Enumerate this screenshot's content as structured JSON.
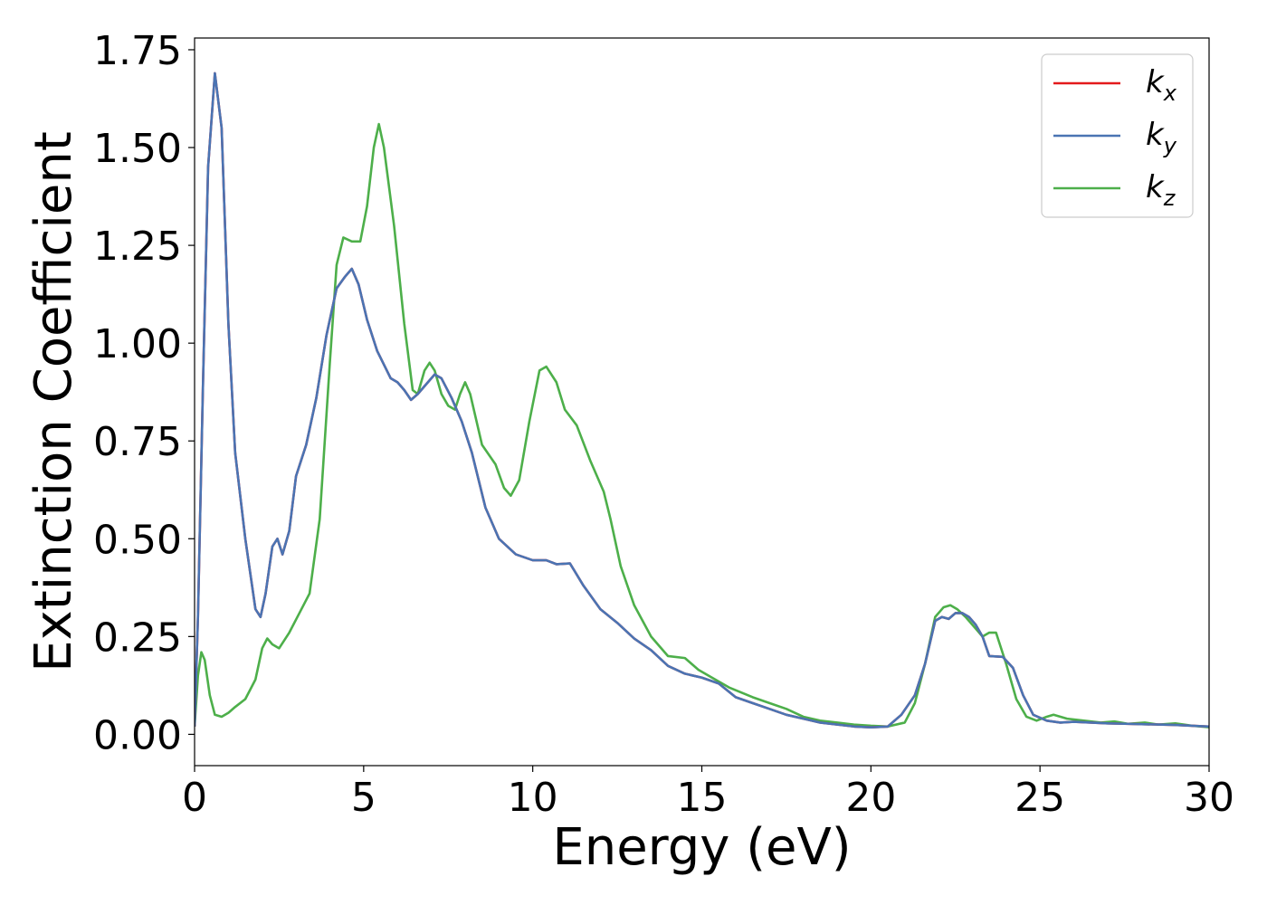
{
  "chart_data": {
    "type": "line",
    "title": "",
    "xlabel": "Energy (eV)",
    "ylabel": "Extinction Coefficient",
    "xlim": [
      0,
      30
    ],
    "ylim": [
      -0.08,
      1.78
    ],
    "xticks": [
      0,
      5,
      10,
      15,
      20,
      25,
      30
    ],
    "xtick_labels": [
      "0",
      "5",
      "10",
      "15",
      "20",
      "25",
      "30"
    ],
    "yticks": [
      0,
      0.25,
      0.5,
      0.75,
      1.0,
      1.25,
      1.5,
      1.75
    ],
    "ytick_labels": [
      "0.00",
      "0.25",
      "0.50",
      "0.75",
      "1.00",
      "1.25",
      "1.50",
      "1.75"
    ],
    "grid": false,
    "legend_position": "top-right",
    "series": [
      {
        "name": "k_x",
        "legend_main": "k",
        "legend_sub": "x",
        "color": "#e41a1c",
        "points": [
          [
            0,
            0.02
          ],
          [
            0.1,
            0.3
          ],
          [
            0.25,
            0.9
          ],
          [
            0.4,
            1.45
          ],
          [
            0.6,
            1.69
          ],
          [
            0.8,
            1.55
          ],
          [
            1.0,
            1.05
          ],
          [
            1.2,
            0.72
          ],
          [
            1.5,
            0.5
          ],
          [
            1.8,
            0.32
          ],
          [
            1.95,
            0.3
          ],
          [
            2.1,
            0.36
          ],
          [
            2.3,
            0.48
          ],
          [
            2.45,
            0.5
          ],
          [
            2.6,
            0.46
          ],
          [
            2.8,
            0.52
          ],
          [
            3.0,
            0.66
          ],
          [
            3.3,
            0.74
          ],
          [
            3.6,
            0.86
          ],
          [
            3.9,
            1.02
          ],
          [
            4.2,
            1.14
          ],
          [
            4.45,
            1.17
          ],
          [
            4.65,
            1.19
          ],
          [
            4.85,
            1.15
          ],
          [
            5.1,
            1.06
          ],
          [
            5.4,
            0.98
          ],
          [
            5.8,
            0.91
          ],
          [
            6.0,
            0.9
          ],
          [
            6.2,
            0.88
          ],
          [
            6.4,
            0.855
          ],
          [
            6.6,
            0.87
          ],
          [
            6.9,
            0.9
          ],
          [
            7.1,
            0.92
          ],
          [
            7.3,
            0.91
          ],
          [
            7.6,
            0.86
          ],
          [
            7.9,
            0.8
          ],
          [
            8.2,
            0.72
          ],
          [
            8.6,
            0.58
          ],
          [
            9.0,
            0.5
          ],
          [
            9.5,
            0.46
          ],
          [
            10.0,
            0.445
          ],
          [
            10.4,
            0.445
          ],
          [
            10.7,
            0.435
          ],
          [
            11.1,
            0.437
          ],
          [
            11.5,
            0.38
          ],
          [
            12.0,
            0.32
          ],
          [
            12.5,
            0.285
          ],
          [
            13.0,
            0.245
          ],
          [
            13.5,
            0.215
          ],
          [
            14.0,
            0.175
          ],
          [
            14.5,
            0.155
          ],
          [
            15.0,
            0.145
          ],
          [
            15.5,
            0.13
          ],
          [
            16.0,
            0.095
          ],
          [
            16.5,
            0.08
          ],
          [
            17.0,
            0.065
          ],
          [
            17.5,
            0.05
          ],
          [
            18.0,
            0.04
          ],
          [
            18.5,
            0.03
          ],
          [
            19.0,
            0.025
          ],
          [
            19.5,
            0.02
          ],
          [
            20.0,
            0.018
          ],
          [
            20.5,
            0.02
          ],
          [
            20.9,
            0.05
          ],
          [
            21.3,
            0.1
          ],
          [
            21.6,
            0.18
          ],
          [
            21.9,
            0.29
          ],
          [
            22.1,
            0.3
          ],
          [
            22.3,
            0.295
          ],
          [
            22.5,
            0.31
          ],
          [
            22.7,
            0.31
          ],
          [
            22.9,
            0.3
          ],
          [
            23.1,
            0.28
          ],
          [
            23.3,
            0.25
          ],
          [
            23.5,
            0.2
          ],
          [
            23.9,
            0.198
          ],
          [
            24.2,
            0.17
          ],
          [
            24.5,
            0.1
          ],
          [
            24.8,
            0.05
          ],
          [
            25.2,
            0.035
          ],
          [
            25.6,
            0.03
          ],
          [
            26.0,
            0.032
          ],
          [
            26.5,
            0.03
          ],
          [
            27.0,
            0.028
          ],
          [
            27.5,
            0.027
          ],
          [
            28.0,
            0.026
          ],
          [
            28.5,
            0.025
          ],
          [
            29.0,
            0.024
          ],
          [
            29.5,
            0.022
          ],
          [
            30.0,
            0.02
          ]
        ]
      },
      {
        "name": "k_y",
        "legend_main": "k",
        "legend_sub": "y",
        "color": "#4a74b3",
        "points": [
          [
            0,
            0.02
          ],
          [
            0.1,
            0.3
          ],
          [
            0.25,
            0.9
          ],
          [
            0.4,
            1.45
          ],
          [
            0.6,
            1.69
          ],
          [
            0.8,
            1.55
          ],
          [
            1.0,
            1.05
          ],
          [
            1.2,
            0.72
          ],
          [
            1.5,
            0.5
          ],
          [
            1.8,
            0.32
          ],
          [
            1.95,
            0.3
          ],
          [
            2.1,
            0.36
          ],
          [
            2.3,
            0.48
          ],
          [
            2.45,
            0.5
          ],
          [
            2.6,
            0.46
          ],
          [
            2.8,
            0.52
          ],
          [
            3.0,
            0.66
          ],
          [
            3.3,
            0.74
          ],
          [
            3.6,
            0.86
          ],
          [
            3.9,
            1.02
          ],
          [
            4.2,
            1.14
          ],
          [
            4.45,
            1.17
          ],
          [
            4.65,
            1.19
          ],
          [
            4.85,
            1.15
          ],
          [
            5.1,
            1.06
          ],
          [
            5.4,
            0.98
          ],
          [
            5.8,
            0.91
          ],
          [
            6.0,
            0.9
          ],
          [
            6.2,
            0.88
          ],
          [
            6.4,
            0.855
          ],
          [
            6.6,
            0.87
          ],
          [
            6.9,
            0.9
          ],
          [
            7.1,
            0.92
          ],
          [
            7.3,
            0.91
          ],
          [
            7.6,
            0.86
          ],
          [
            7.9,
            0.8
          ],
          [
            8.2,
            0.72
          ],
          [
            8.6,
            0.58
          ],
          [
            9.0,
            0.5
          ],
          [
            9.5,
            0.46
          ],
          [
            10.0,
            0.445
          ],
          [
            10.4,
            0.445
          ],
          [
            10.7,
            0.435
          ],
          [
            11.1,
            0.437
          ],
          [
            11.5,
            0.38
          ],
          [
            12.0,
            0.32
          ],
          [
            12.5,
            0.285
          ],
          [
            13.0,
            0.245
          ],
          [
            13.5,
            0.215
          ],
          [
            14.0,
            0.175
          ],
          [
            14.5,
            0.155
          ],
          [
            15.0,
            0.145
          ],
          [
            15.5,
            0.13
          ],
          [
            16.0,
            0.095
          ],
          [
            16.5,
            0.08
          ],
          [
            17.0,
            0.065
          ],
          [
            17.5,
            0.05
          ],
          [
            18.0,
            0.04
          ],
          [
            18.5,
            0.03
          ],
          [
            19.0,
            0.025
          ],
          [
            19.5,
            0.02
          ],
          [
            20.0,
            0.018
          ],
          [
            20.5,
            0.02
          ],
          [
            20.9,
            0.05
          ],
          [
            21.3,
            0.1
          ],
          [
            21.6,
            0.18
          ],
          [
            21.9,
            0.29
          ],
          [
            22.1,
            0.3
          ],
          [
            22.3,
            0.295
          ],
          [
            22.5,
            0.31
          ],
          [
            22.7,
            0.31
          ],
          [
            22.9,
            0.3
          ],
          [
            23.1,
            0.28
          ],
          [
            23.3,
            0.25
          ],
          [
            23.5,
            0.2
          ],
          [
            23.9,
            0.198
          ],
          [
            24.2,
            0.17
          ],
          [
            24.5,
            0.1
          ],
          [
            24.8,
            0.05
          ],
          [
            25.2,
            0.035
          ],
          [
            25.6,
            0.03
          ],
          [
            26.0,
            0.032
          ],
          [
            26.5,
            0.03
          ],
          [
            27.0,
            0.028
          ],
          [
            27.5,
            0.027
          ],
          [
            28.0,
            0.026
          ],
          [
            28.5,
            0.025
          ],
          [
            29.0,
            0.024
          ],
          [
            29.5,
            0.022
          ],
          [
            30.0,
            0.02
          ]
        ]
      },
      {
        "name": "k_z",
        "legend_main": "k",
        "legend_sub": "z",
        "color": "#4daf4a",
        "points": [
          [
            0,
            0.02
          ],
          [
            0.1,
            0.15
          ],
          [
            0.2,
            0.21
          ],
          [
            0.3,
            0.19
          ],
          [
            0.45,
            0.1
          ],
          [
            0.6,
            0.05
          ],
          [
            0.8,
            0.045
          ],
          [
            1.0,
            0.055
          ],
          [
            1.2,
            0.07
          ],
          [
            1.5,
            0.09
          ],
          [
            1.8,
            0.14
          ],
          [
            2.0,
            0.22
          ],
          [
            2.15,
            0.245
          ],
          [
            2.3,
            0.23
          ],
          [
            2.5,
            0.22
          ],
          [
            2.8,
            0.26
          ],
          [
            3.1,
            0.31
          ],
          [
            3.4,
            0.36
          ],
          [
            3.7,
            0.55
          ],
          [
            4.0,
            0.95
          ],
          [
            4.2,
            1.2
          ],
          [
            4.4,
            1.27
          ],
          [
            4.65,
            1.26
          ],
          [
            4.9,
            1.26
          ],
          [
            5.1,
            1.35
          ],
          [
            5.3,
            1.5
          ],
          [
            5.45,
            1.56
          ],
          [
            5.6,
            1.5
          ],
          [
            5.9,
            1.3
          ],
          [
            6.2,
            1.05
          ],
          [
            6.45,
            0.88
          ],
          [
            6.6,
            0.87
          ],
          [
            6.8,
            0.93
          ],
          [
            6.95,
            0.95
          ],
          [
            7.1,
            0.93
          ],
          [
            7.3,
            0.87
          ],
          [
            7.5,
            0.84
          ],
          [
            7.7,
            0.83
          ],
          [
            7.85,
            0.87
          ],
          [
            8.0,
            0.9
          ],
          [
            8.15,
            0.87
          ],
          [
            8.5,
            0.74
          ],
          [
            8.9,
            0.69
          ],
          [
            9.15,
            0.63
          ],
          [
            9.35,
            0.61
          ],
          [
            9.6,
            0.65
          ],
          [
            9.9,
            0.8
          ],
          [
            10.2,
            0.93
          ],
          [
            10.4,
            0.94
          ],
          [
            10.7,
            0.9
          ],
          [
            10.95,
            0.83
          ],
          [
            11.3,
            0.79
          ],
          [
            11.7,
            0.7
          ],
          [
            12.1,
            0.62
          ],
          [
            12.3,
            0.55
          ],
          [
            12.6,
            0.43
          ],
          [
            13.0,
            0.33
          ],
          [
            13.5,
            0.25
          ],
          [
            14.0,
            0.2
          ],
          [
            14.5,
            0.195
          ],
          [
            14.9,
            0.165
          ],
          [
            15.3,
            0.145
          ],
          [
            15.8,
            0.12
          ],
          [
            16.5,
            0.095
          ],
          [
            17.0,
            0.08
          ],
          [
            17.5,
            0.065
          ],
          [
            18.0,
            0.045
          ],
          [
            18.5,
            0.035
          ],
          [
            19.0,
            0.03
          ],
          [
            19.5,
            0.025
          ],
          [
            20.0,
            0.022
          ],
          [
            20.5,
            0.02
          ],
          [
            21.0,
            0.03
          ],
          [
            21.3,
            0.08
          ],
          [
            21.6,
            0.18
          ],
          [
            21.9,
            0.3
          ],
          [
            22.15,
            0.325
          ],
          [
            22.35,
            0.33
          ],
          [
            22.55,
            0.32
          ],
          [
            22.8,
            0.3
          ],
          [
            23.1,
            0.27
          ],
          [
            23.3,
            0.25
          ],
          [
            23.5,
            0.26
          ],
          [
            23.7,
            0.26
          ],
          [
            24.0,
            0.18
          ],
          [
            24.3,
            0.09
          ],
          [
            24.6,
            0.045
          ],
          [
            24.9,
            0.035
          ],
          [
            25.2,
            0.045
          ],
          [
            25.4,
            0.05
          ],
          [
            25.8,
            0.04
          ],
          [
            26.3,
            0.035
          ],
          [
            26.8,
            0.03
          ],
          [
            27.2,
            0.033
          ],
          [
            27.6,
            0.027
          ],
          [
            28.1,
            0.03
          ],
          [
            28.5,
            0.025
          ],
          [
            29.0,
            0.028
          ],
          [
            29.5,
            0.022
          ],
          [
            30.0,
            0.018
          ]
        ]
      }
    ]
  }
}
